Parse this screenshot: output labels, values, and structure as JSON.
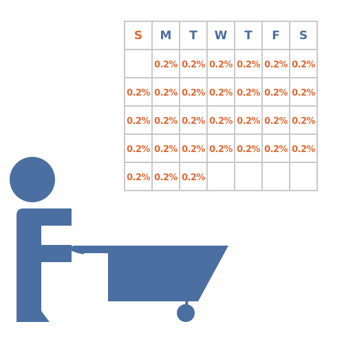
{
  "colors": {
    "figure": "#4a6fa0",
    "accent": "#e16a35",
    "weekday": "#4a6fa0",
    "grid": "#c8c8c8"
  },
  "icon": "person-pushing-wheelbarrow-icon",
  "calendar": {
    "days": [
      "S",
      "M",
      "T",
      "W",
      "T",
      "F",
      "S"
    ],
    "weeks": [
      [
        "",
        "0.2%",
        "0.2%",
        "0.2%",
        "0.2%",
        "0.2%",
        "0.2%"
      ],
      [
        "0.2%",
        "0.2%",
        "0.2%",
        "0.2%",
        "0.2%",
        "0.2%",
        "0.2%"
      ],
      [
        "0.2%",
        "0.2%",
        "0.2%",
        "0.2%",
        "0.2%",
        "0.2%",
        "0.2%"
      ],
      [
        "0.2%",
        "0.2%",
        "0.2%",
        "0.2%",
        "0.2%",
        "0.2%",
        "0.2%"
      ],
      [
        "0.2%",
        "0.2%",
        "0.2%",
        "",
        "",
        "",
        ""
      ]
    ]
  }
}
